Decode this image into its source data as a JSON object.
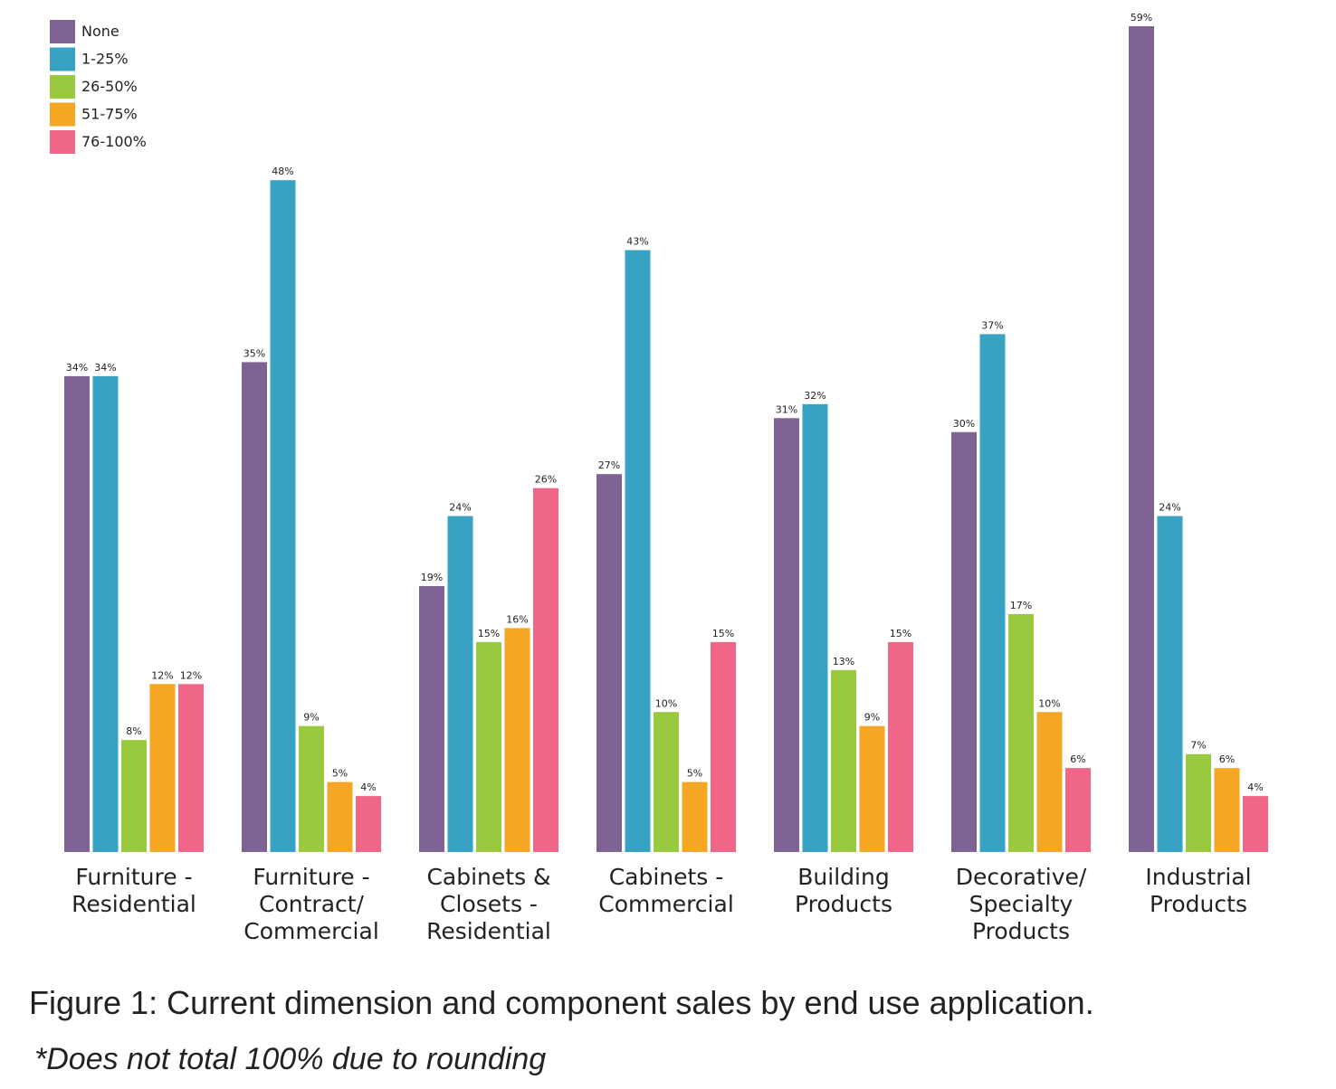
{
  "chart_data": {
    "type": "bar",
    "categories": [
      [
        "Furniture -",
        "Residential"
      ],
      [
        "Furniture -",
        "Contract/",
        "Commercial"
      ],
      [
        "Cabinets &",
        "Closets -",
        "Residential"
      ],
      [
        "Cabinets -",
        "Commercial"
      ],
      [
        "Building",
        "Products"
      ],
      [
        "Decorative/",
        "Specialty",
        "Products"
      ],
      [
        "Industrial",
        "Products"
      ]
    ],
    "series": [
      {
        "name": "None",
        "color": "#7f6395",
        "values": [
          34,
          35,
          19,
          27,
          31,
          30,
          59
        ]
      },
      {
        "name": "1-25%",
        "color": "#37a2c2",
        "values": [
          34,
          48,
          24,
          43,
          32,
          37,
          24
        ]
      },
      {
        "name": "26-50%",
        "color": "#98c93e",
        "values": [
          8,
          9,
          15,
          10,
          13,
          17,
          7
        ]
      },
      {
        "name": "51-75%",
        "color": "#f5a623",
        "values": [
          12,
          5,
          16,
          5,
          9,
          10,
          6
        ]
      },
      {
        "name": "76-100%",
        "color": "#f06689",
        "values": [
          12,
          4,
          26,
          15,
          15,
          6,
          4
        ]
      }
    ],
    "value_suffix": "%",
    "ylim": [
      0,
      59
    ],
    "legend_position": "top-left",
    "grid": false
  },
  "caption": "Figure 1: Current dimension and component sales by end use application.",
  "footnote": "*Does not total 100% due to rounding"
}
